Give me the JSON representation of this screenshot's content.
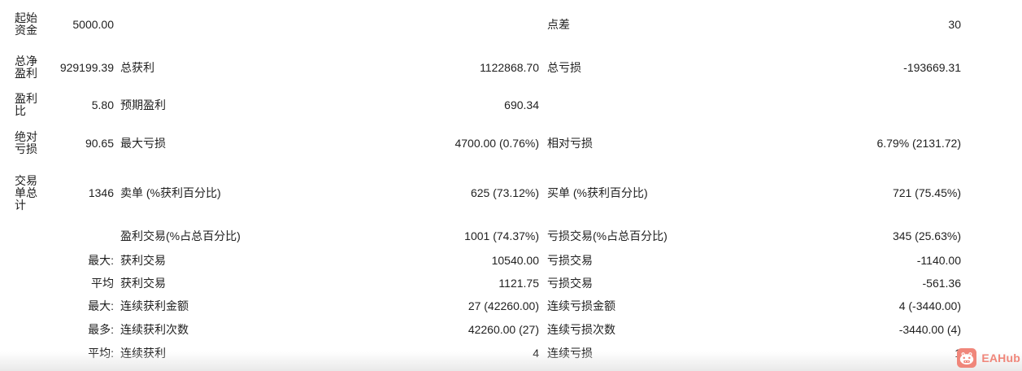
{
  "page": {
    "background": "#ffffff",
    "text_color": "#1f1f1f",
    "bottom_fade_color": "#e9e9e9"
  },
  "report": {
    "rows": [
      {
        "row_label": "起始资金",
        "value1": "5000.00",
        "label2": "",
        "value2": "",
        "label3": "点差",
        "value3": "30"
      },
      {
        "row_label": "总净盈利",
        "value1": "929199.39",
        "label2": "总获利",
        "value2": "1122868.70",
        "label3": "总亏损",
        "value3": "-193669.31"
      },
      {
        "row_label": "盈利比",
        "value1": "5.80",
        "label2": "预期盈利",
        "value2": "690.34",
        "label3": "",
        "value3": ""
      },
      {
        "row_label": "绝对亏损",
        "value1": "90.65",
        "label2": "最大亏损",
        "value2": "4700.00 (0.76%)",
        "label3": "相对亏损",
        "value3": "6.79% (2131.72)"
      },
      {
        "row_label": "交易单总计",
        "value1": "1346",
        "label2": "卖单 (%获利百分比)",
        "value2": "625 (73.12%)",
        "label3": "买单 (%获利百分比)",
        "value3": "721 (75.45%)"
      },
      {
        "row_label": "",
        "value1": "",
        "label2": "盈利交易(%占总百分比)",
        "value2": "1001 (74.37%)",
        "label3": "亏损交易(%占总百分比)",
        "value3": "345 (25.63%)"
      },
      {
        "row_label": "",
        "value1": "最大:",
        "label2": "获利交易",
        "value2": "10540.00",
        "label3": "亏损交易",
        "value3": "-1140.00"
      },
      {
        "row_label": "",
        "value1": "平均",
        "label2": "获利交易",
        "value2": "1121.75",
        "label3": "亏损交易",
        "value3": "-561.36"
      },
      {
        "row_label": "",
        "value1": "最大:",
        "label2": "连续获利金额",
        "value2": "27 (42260.00)",
        "label3": "连续亏损金额",
        "value3": "4 (-3440.00)"
      },
      {
        "row_label": "",
        "value1": "最多:",
        "label2": "连续获利次数",
        "value2": "42260.00 (27)",
        "label3": "连续亏损次数",
        "value3": "-3440.00 (4)"
      },
      {
        "row_label": "",
        "value1": "平均:",
        "label2": "连续获利",
        "value2": "4",
        "label3": "连续亏损",
        "value3": "1"
      }
    ]
  },
  "watermark": {
    "label": "EAHub",
    "color": "#f0867a",
    "icon": "robot-face-icon"
  }
}
